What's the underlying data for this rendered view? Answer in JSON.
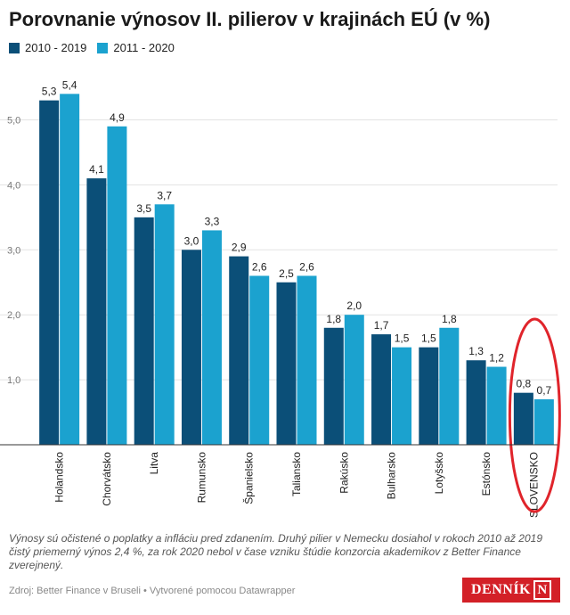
{
  "title": "Porovnanie výnosov II. pilierov v krajinách EÚ (v %)",
  "legend": [
    {
      "label": "2010 - 2019",
      "color": "#0b4f78"
    },
    {
      "label": "2011 - 2020",
      "color": "#1ba2cf"
    }
  ],
  "note": "Výnosy sú očistené o poplatky a infláciu pred zdanením. Druhý pilier v Nemecku dosiahol v rokoch 2010 až 2019 čistý priemerný výnos 2,4 %, za rok 2020 nebol v čase vzniku štúdie konzorcia akademikov z Better Finance zverejnený.",
  "source": "Zdroj: Better Finance v Bruseli • Vytvorené pomocou Datawrapper",
  "logo": {
    "text": "DENNÍK",
    "box": "N"
  },
  "chart_data": {
    "type": "bar",
    "title": "Porovnanie výnosov II. pilierov v krajinách EÚ (v %)",
    "categories": [
      "Holandsko",
      "Chorvátsko",
      "Litva",
      "Rumunsko",
      "Španielsko",
      "Taliansko",
      "Rakúsko",
      "Bulharsko",
      "Lotyšsko",
      "Estónsko",
      "SLOVENSKO"
    ],
    "series": [
      {
        "name": "2010 - 2019",
        "color": "#0b4f78",
        "values": [
          5.3,
          4.1,
          3.5,
          3.0,
          2.9,
          2.5,
          1.8,
          1.7,
          1.5,
          1.3,
          0.8
        ],
        "labels": [
          "5,3",
          "4,1",
          "3,5",
          "3,0",
          "2,9",
          "2,5",
          "1,8",
          "1,7",
          "1,5",
          "1,3",
          "0,8"
        ]
      },
      {
        "name": "2011 - 2020",
        "color": "#1ba2cf",
        "values": [
          5.4,
          4.9,
          3.7,
          3.3,
          2.6,
          2.6,
          2.0,
          1.5,
          1.8,
          1.2,
          0.7
        ],
        "labels": [
          "5,4",
          "4,9",
          "3,7",
          "3,3",
          "2,6",
          "2,6",
          "2,0",
          "1,5",
          "1,8",
          "1,2",
          "0,7"
        ]
      }
    ],
    "ylim": [
      0,
      5.5
    ],
    "yticks": [
      1,
      2,
      3,
      4,
      5
    ],
    "ytick_labels": [
      "1,0",
      "2,0",
      "3,0",
      "4,0",
      "5,0"
    ],
    "grid": true,
    "legend_position": "top-left",
    "highlight": {
      "category": "SLOVENSKO",
      "color": "#e0242b"
    }
  }
}
